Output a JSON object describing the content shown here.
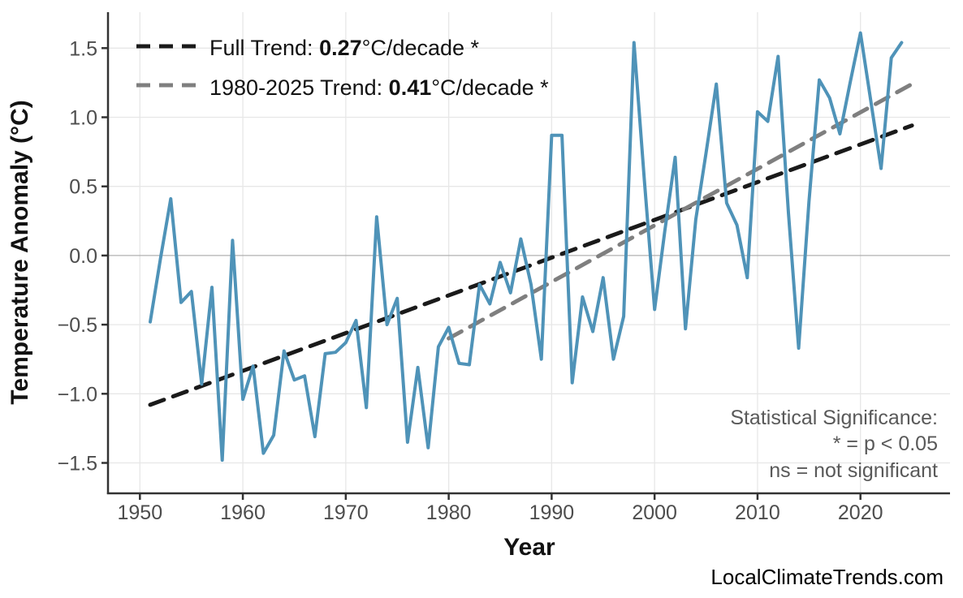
{
  "watermark": "LocalClimateTrends.com",
  "legend": {
    "full_trend": {
      "prefix": "Full Trend: ",
      "value": "0.27",
      "suffix": "°C/decade *",
      "color": "#1a1a1a"
    },
    "recent_trend": {
      "prefix": "1980-2025 Trend: ",
      "value": "0.41",
      "suffix": "°C/decade *",
      "color": "#7f7f7f"
    }
  },
  "annotation": {
    "line1": "Statistical Significance:",
    "line2": "* = p < 0.05",
    "line3": "ns = not significant"
  },
  "chart_data": {
    "type": "line",
    "title": "",
    "xlabel": "Year",
    "ylabel": "Temperature Anomaly (°C)",
    "x_ticks": [
      1950,
      1960,
      1970,
      1980,
      1990,
      2000,
      2010,
      2020
    ],
    "y_ticks": [
      -1.5,
      -1.0,
      -0.5,
      0.0,
      0.5,
      1.0,
      1.5
    ],
    "xlim": [
      1946.9,
      2028.7
    ],
    "ylim": [
      -1.72,
      1.76
    ],
    "grid": true,
    "grid_color": "#e7e7e7",
    "zero_line_color": "#b0b0b0",
    "legend_position": "upper-left",
    "series": [
      {
        "name": "full-trend",
        "label": "Full Trend: 0.27°C/decade *",
        "color": "#1a1a1a",
        "width": 5,
        "dash": "18 12",
        "x": [
          1951,
          2025
        ],
        "values": [
          -1.08,
          0.94
        ]
      },
      {
        "name": "trend-1980-2025",
        "label": "1980-2025 Trend: 0.41°C/decade *",
        "color": "#7f7f7f",
        "width": 5,
        "dash": "18 12",
        "x": [
          1980,
          2025
        ],
        "values": [
          -0.6,
          1.24
        ]
      },
      {
        "name": "annual-anomaly",
        "label": "Annual temperature anomaly",
        "color": "#4f93b8",
        "width": 4,
        "dash": null,
        "x": [
          1951,
          1952,
          1953,
          1954,
          1955,
          1956,
          1957,
          1958,
          1959,
          1960,
          1961,
          1962,
          1963,
          1964,
          1965,
          1966,
          1967,
          1968,
          1969,
          1970,
          1971,
          1972,
          1973,
          1974,
          1975,
          1976,
          1977,
          1978,
          1979,
          1980,
          1981,
          1982,
          1983,
          1984,
          1985,
          1986,
          1987,
          1988,
          1989,
          1990,
          1991,
          1992,
          1993,
          1994,
          1995,
          1996,
          1997,
          1998,
          1999,
          2000,
          2001,
          2002,
          2003,
          2004,
          2005,
          2006,
          2007,
          2008,
          2009,
          2010,
          2011,
          2012,
          2013,
          2014,
          2015,
          2016,
          2017,
          2018,
          2019,
          2020,
          2021,
          2022,
          2023,
          2024
        ],
        "values": [
          -0.48,
          -0.02,
          0.41,
          -0.34,
          -0.26,
          -0.93,
          -0.23,
          -1.48,
          0.11,
          -1.04,
          -0.8,
          -1.43,
          -1.3,
          -0.69,
          -0.9,
          -0.87,
          -1.31,
          -0.71,
          -0.7,
          -0.63,
          -0.47,
          -1.1,
          0.28,
          -0.5,
          -0.31,
          -1.35,
          -0.81,
          -1.39,
          -0.66,
          -0.52,
          -0.78,
          -0.79,
          -0.21,
          -0.35,
          -0.05,
          -0.27,
          0.12,
          -0.21,
          -0.75,
          0.87,
          0.87,
          -0.92,
          -0.3,
          -0.55,
          -0.16,
          -0.75,
          -0.44,
          1.54,
          0.55,
          -0.39,
          0.18,
          0.71,
          -0.53,
          0.26,
          0.74,
          1.24,
          0.38,
          0.22,
          -0.16,
          1.04,
          0.97,
          1.44,
          0.31,
          -0.67,
          0.39,
          1.27,
          1.14,
          0.88,
          1.25,
          1.61,
          1.12,
          0.63,
          1.43,
          1.54
        ]
      }
    ]
  }
}
